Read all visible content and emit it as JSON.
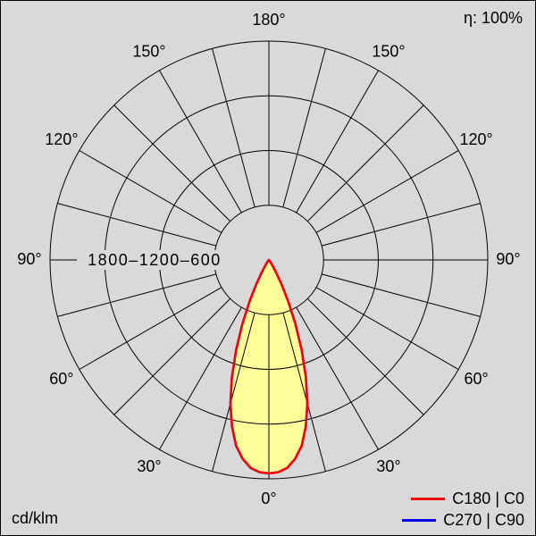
{
  "header": {
    "efficiency": "η: 100%"
  },
  "footer": {
    "unit": "cd/klm"
  },
  "legend": {
    "items": [
      {
        "label": "C180 | C0",
        "color": "#ff0000"
      },
      {
        "label": "C270 | C90",
        "color": "#0000ee"
      }
    ]
  },
  "chart_data": {
    "type": "line",
    "polar": true,
    "units": "cd/klm",
    "angle_zero": "bottom",
    "rings": [
      600,
      1200,
      1800,
      2400
    ],
    "radial_labels_text": "1800–1200–600",
    "spoke_step_deg": 15,
    "angle_label_step_deg": 30,
    "angle_labels": [
      "0°",
      "30°",
      "60°",
      "90°",
      "120°",
      "150°",
      "180°"
    ],
    "grid_color": "#000000",
    "background_color": "#d9d9d9",
    "fill_color": "#ffff99",
    "series": [
      {
        "name": "C270 | C90",
        "color": "#0000ee",
        "symmetric": true,
        "angles_deg": [
          0,
          2.5,
          5,
          7.5,
          10,
          12.5,
          15,
          17.5,
          20,
          22.5,
          25,
          27.5,
          30,
          32.5,
          35,
          40,
          45,
          50,
          60,
          75,
          90,
          120,
          150,
          180
        ],
        "values": [
          2340,
          2330,
          2290,
          2200,
          2070,
          1870,
          1630,
          1350,
          1050,
          760,
          500,
          300,
          150,
          80,
          40,
          10,
          0,
          0,
          0,
          0,
          0,
          0,
          0,
          0
        ]
      },
      {
        "name": "C180 | C0",
        "color": "#ff0000",
        "symmetric": true,
        "angles_deg": [
          0,
          2.5,
          5,
          7.5,
          10,
          12.5,
          15,
          17.5,
          20,
          22.5,
          25,
          27.5,
          30,
          32.5,
          35,
          40,
          45,
          50,
          60,
          75,
          90,
          120,
          150,
          180
        ],
        "values": [
          2340,
          2330,
          2290,
          2200,
          2070,
          1870,
          1630,
          1350,
          1050,
          760,
          500,
          300,
          150,
          80,
          40,
          10,
          0,
          0,
          0,
          0,
          0,
          0,
          0,
          0
        ]
      }
    ]
  }
}
